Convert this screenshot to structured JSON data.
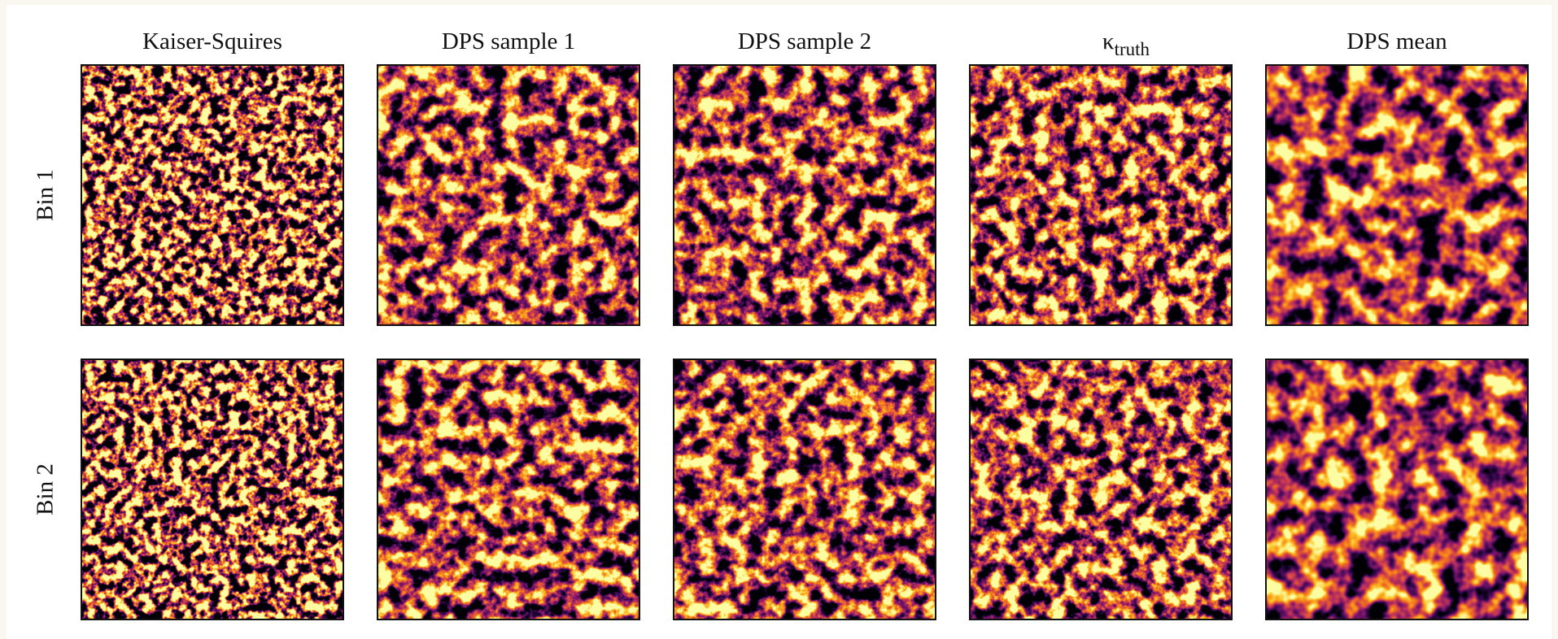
{
  "columns": [
    {
      "title": "Kaiser-Squires"
    },
    {
      "title": "DPS sample 1"
    },
    {
      "title": "DPS sample 2"
    },
    {
      "symbol": "κ",
      "subscript": "truth"
    },
    {
      "title": "DPS mean"
    }
  ],
  "rows": [
    "Bin 1",
    "Bin 2"
  ]
}
